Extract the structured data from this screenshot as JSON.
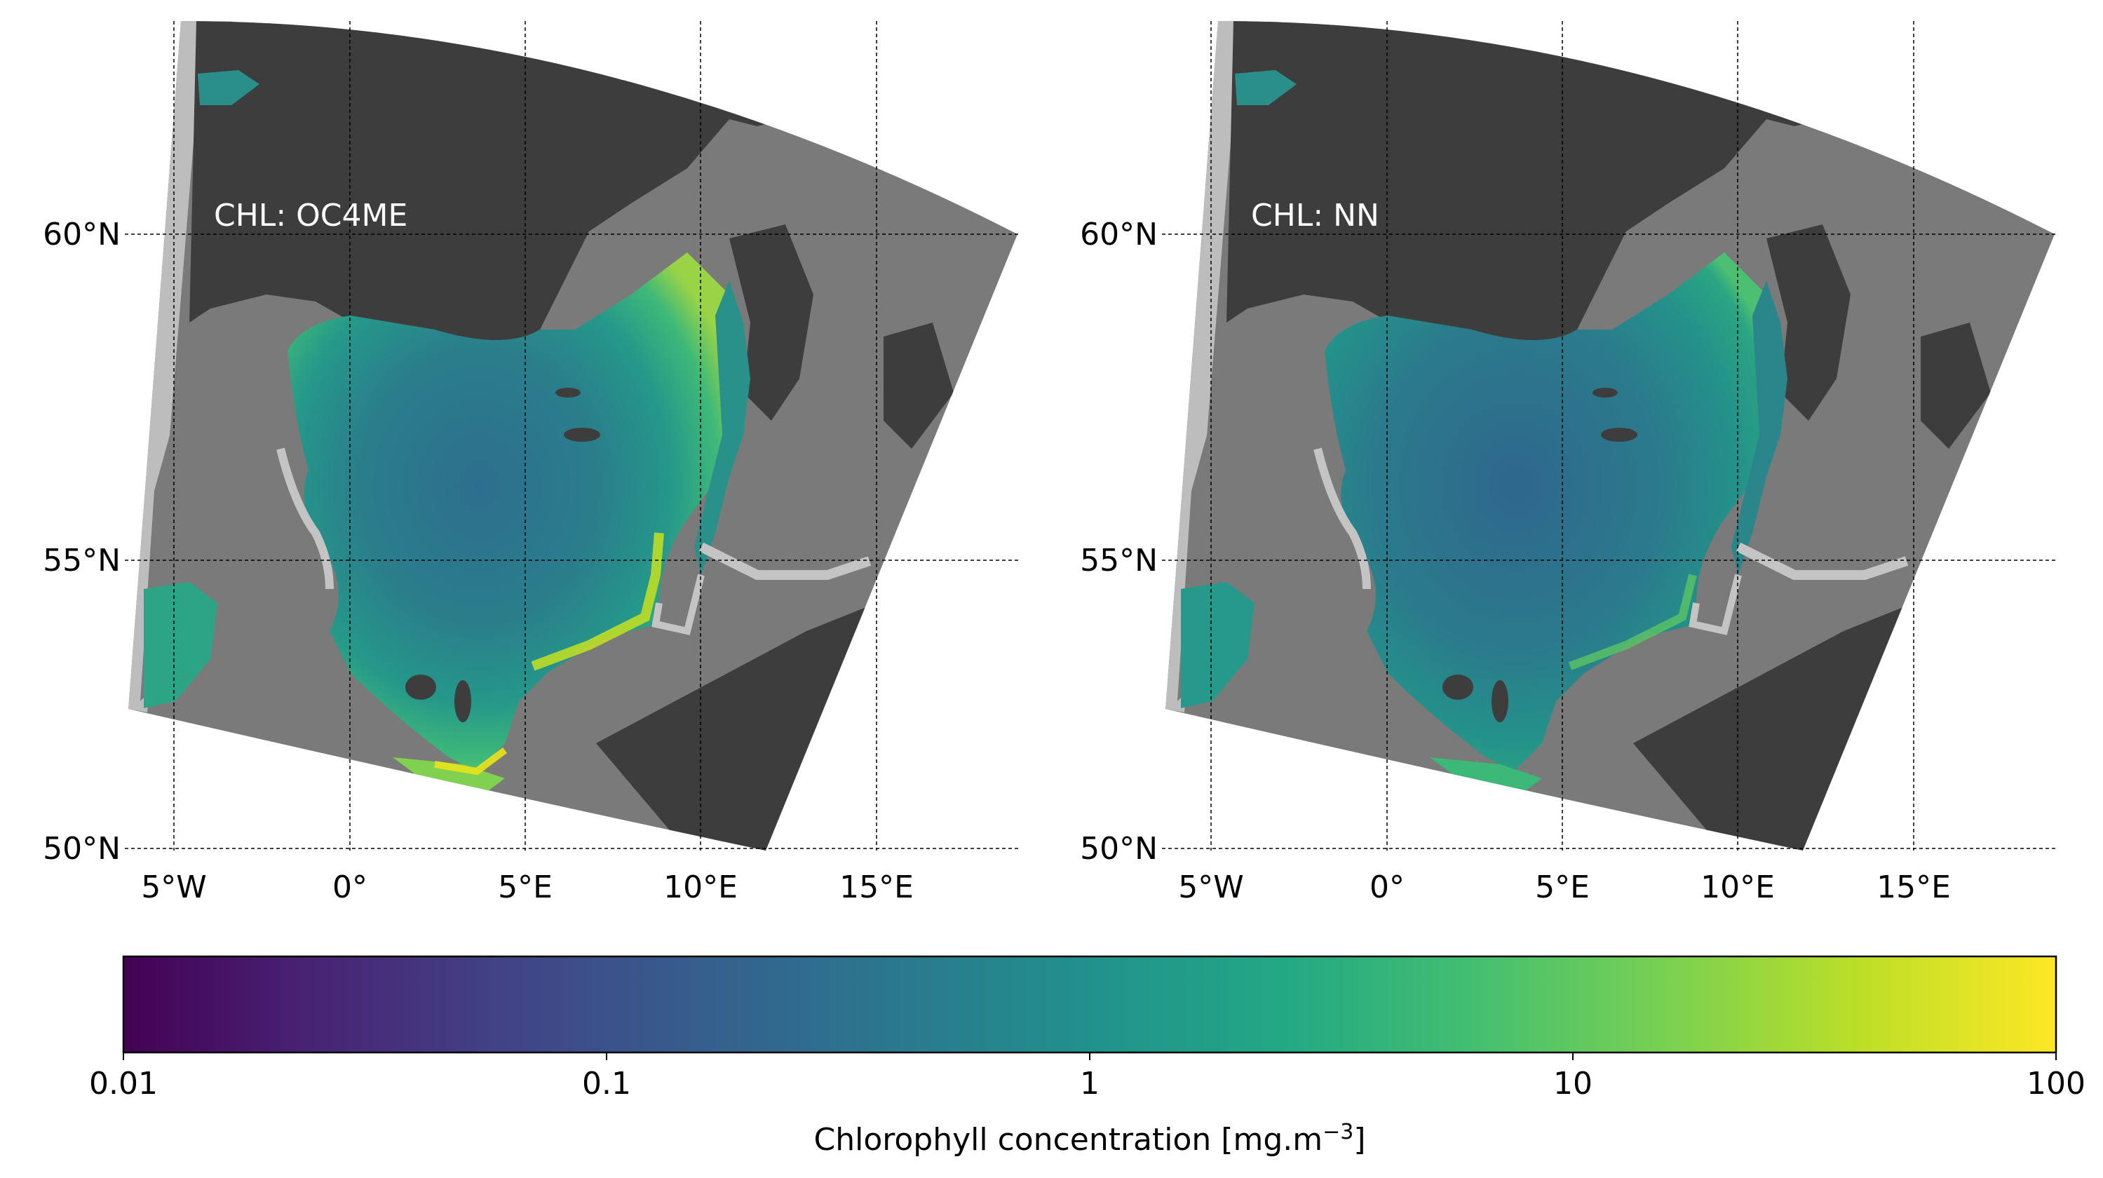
{
  "panels": [
    {
      "label": "CHL: OC4ME",
      "lat_ticks": [
        "60°N",
        "55°N",
        "50°N"
      ],
      "lon_ticks": [
        "5°W",
        "0°",
        "5°E",
        "10°E",
        "15°E"
      ]
    },
    {
      "label": "CHL: NN",
      "lat_ticks": [
        "60°N",
        "55°N",
        "50°N"
      ],
      "lon_ticks": [
        "5°W",
        "0°",
        "5°E",
        "10°E",
        "15°E"
      ]
    }
  ],
  "colorbar": {
    "colormap": "viridis",
    "scale": "log",
    "range": [
      0.01,
      100
    ],
    "ticks": [
      "0.01",
      "0.1",
      "1",
      "10",
      "100"
    ],
    "label_text": "Chlorophyll concentration [mg.m",
    "label_superscript": "−3",
    "label_close": "]"
  },
  "colors": {
    "land": "#3d3d3d",
    "cloud_mask": "#7a7a7a",
    "coastal_flag": "#c4c4c4",
    "swath_edge": "#bdbdbd",
    "label_text": "#ffffff"
  }
}
